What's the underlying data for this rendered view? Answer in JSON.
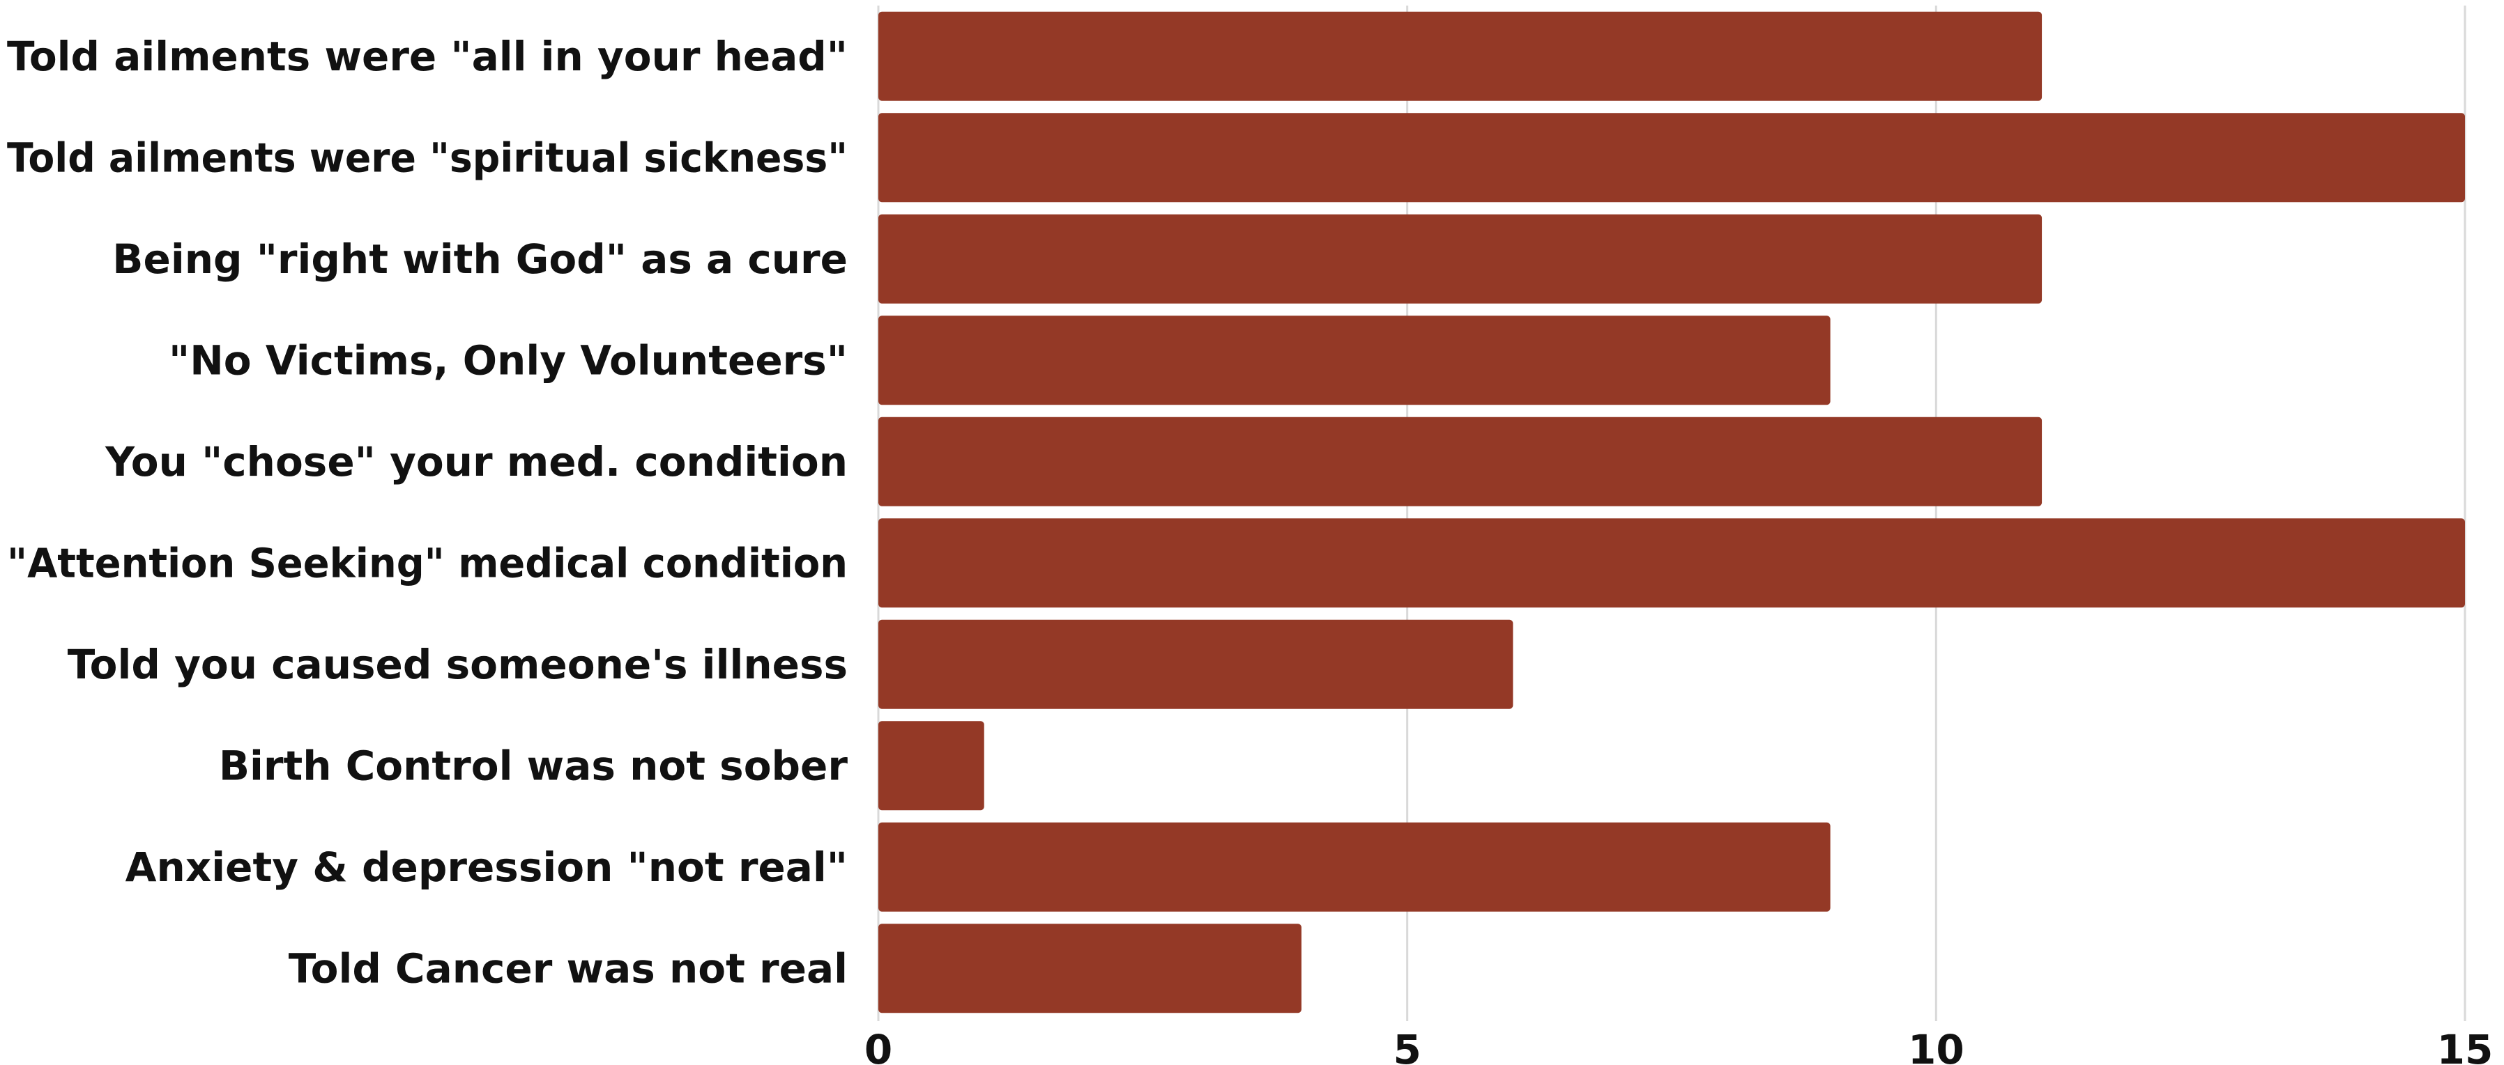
{
  "chart_data": {
    "type": "bar",
    "orientation": "horizontal",
    "categories": [
      "Told ailments were \"all in your head\"",
      "Told ailments were \"spiritual sickness\"",
      "Being \"right with God\" as a cure",
      "\"No Victims, Only Volunteers\"",
      "You \"chose\" your med. condition",
      "\"Attention Seeking\" medical condition",
      "Told you caused someone's illness",
      "Birth Control was not sober",
      "Anxiety & depression \"not real\"",
      "Told Cancer was not real"
    ],
    "values": [
      11,
      15,
      11,
      9,
      11,
      15,
      6,
      1,
      9,
      4
    ],
    "title": "",
    "xlabel": "",
    "ylabel": "",
    "xlim": [
      0,
      15
    ],
    "xticks": [
      0,
      5,
      10,
      15
    ],
    "xtick_labels": [
      "0",
      "5",
      "10",
      "15"
    ],
    "grid": "vertical",
    "legend": "none",
    "bar_color": "#943926",
    "grid_color": "#d9d9d9",
    "text_color": "#111111"
  }
}
